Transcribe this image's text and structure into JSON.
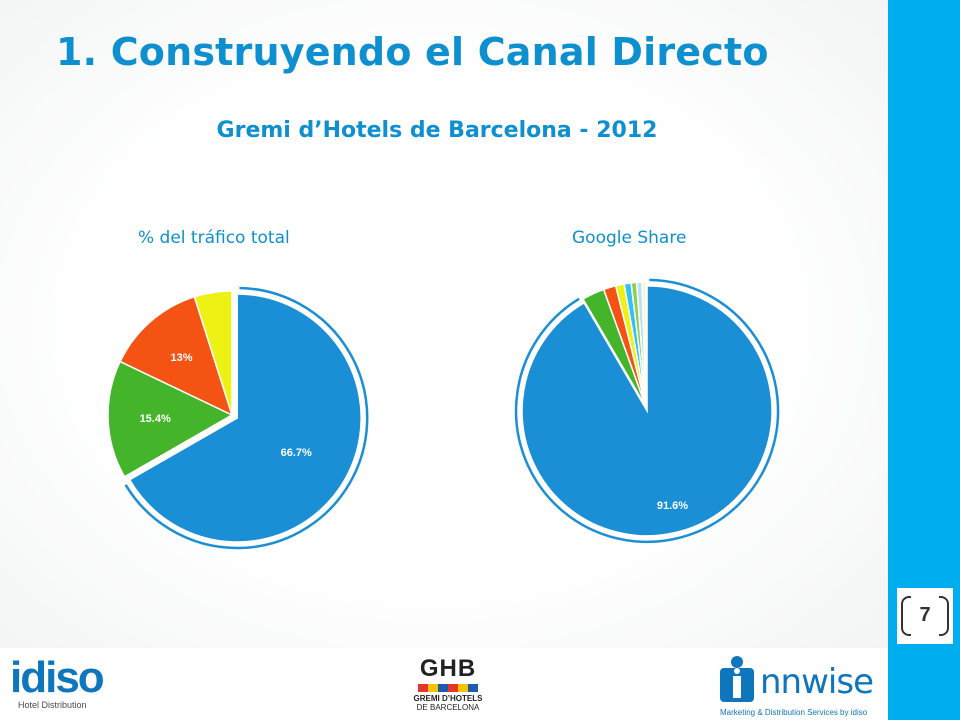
{
  "slide": {
    "title": "1. Construyendo el Canal Directo",
    "subtitle": "Gremi d’Hotels de Barcelona - 2012",
    "page_number": "7"
  },
  "colors": {
    "title_blue": "#0e8fcf",
    "accent_bar": "#00aeef",
    "pie_blue": "#1a8fd6",
    "pie_green": "#44b52a",
    "pie_orange": "#f55314",
    "pie_yellow": "#eef114"
  },
  "chart_data": [
    {
      "type": "pie",
      "title": "% del tráfico total",
      "slices": [
        {
          "value": 66.7,
          "label": "66.7%",
          "color": "#1a8fd6"
        },
        {
          "value": 15.4,
          "label": "15.4%",
          "color": "#44b52a"
        },
        {
          "value": 13.0,
          "label": "13%",
          "color": "#f55314"
        },
        {
          "value": 4.9,
          "label": "",
          "color": "#eef114"
        }
      ],
      "exploded_slice": 0
    },
    {
      "type": "pie",
      "title": "Google Share",
      "slices": [
        {
          "value": 91.6,
          "label": "91.6%",
          "color": "#1a8fd6"
        },
        {
          "value": 2.9,
          "label": "",
          "color": "#44b52a"
        },
        {
          "value": 1.6,
          "label": "",
          "color": "#f55314"
        },
        {
          "value": 1.1,
          "label": "",
          "color": "#eef114"
        },
        {
          "value": 0.9,
          "label": "",
          "color": "#2ec4ef"
        },
        {
          "value": 0.7,
          "label": "",
          "color": "#8fd14f"
        },
        {
          "value": 0.7,
          "label": "",
          "color": "#b9e0f4"
        },
        {
          "value": 0.5,
          "label": "",
          "color": "#f4f7c0"
        }
      ],
      "exploded_slice": 0
    }
  ],
  "footer": {
    "idiso_logo": {
      "text": "idiso",
      "tagline": "Hotel Distribution"
    },
    "ghb_logo": {
      "text": "GHB",
      "line1": "GREMI D’HOTELS",
      "line2": "DE BARCELONA"
    },
    "innwise_logo": {
      "text": "nnwise",
      "tagline": "Marketing & Distribution Services by idiso"
    }
  }
}
